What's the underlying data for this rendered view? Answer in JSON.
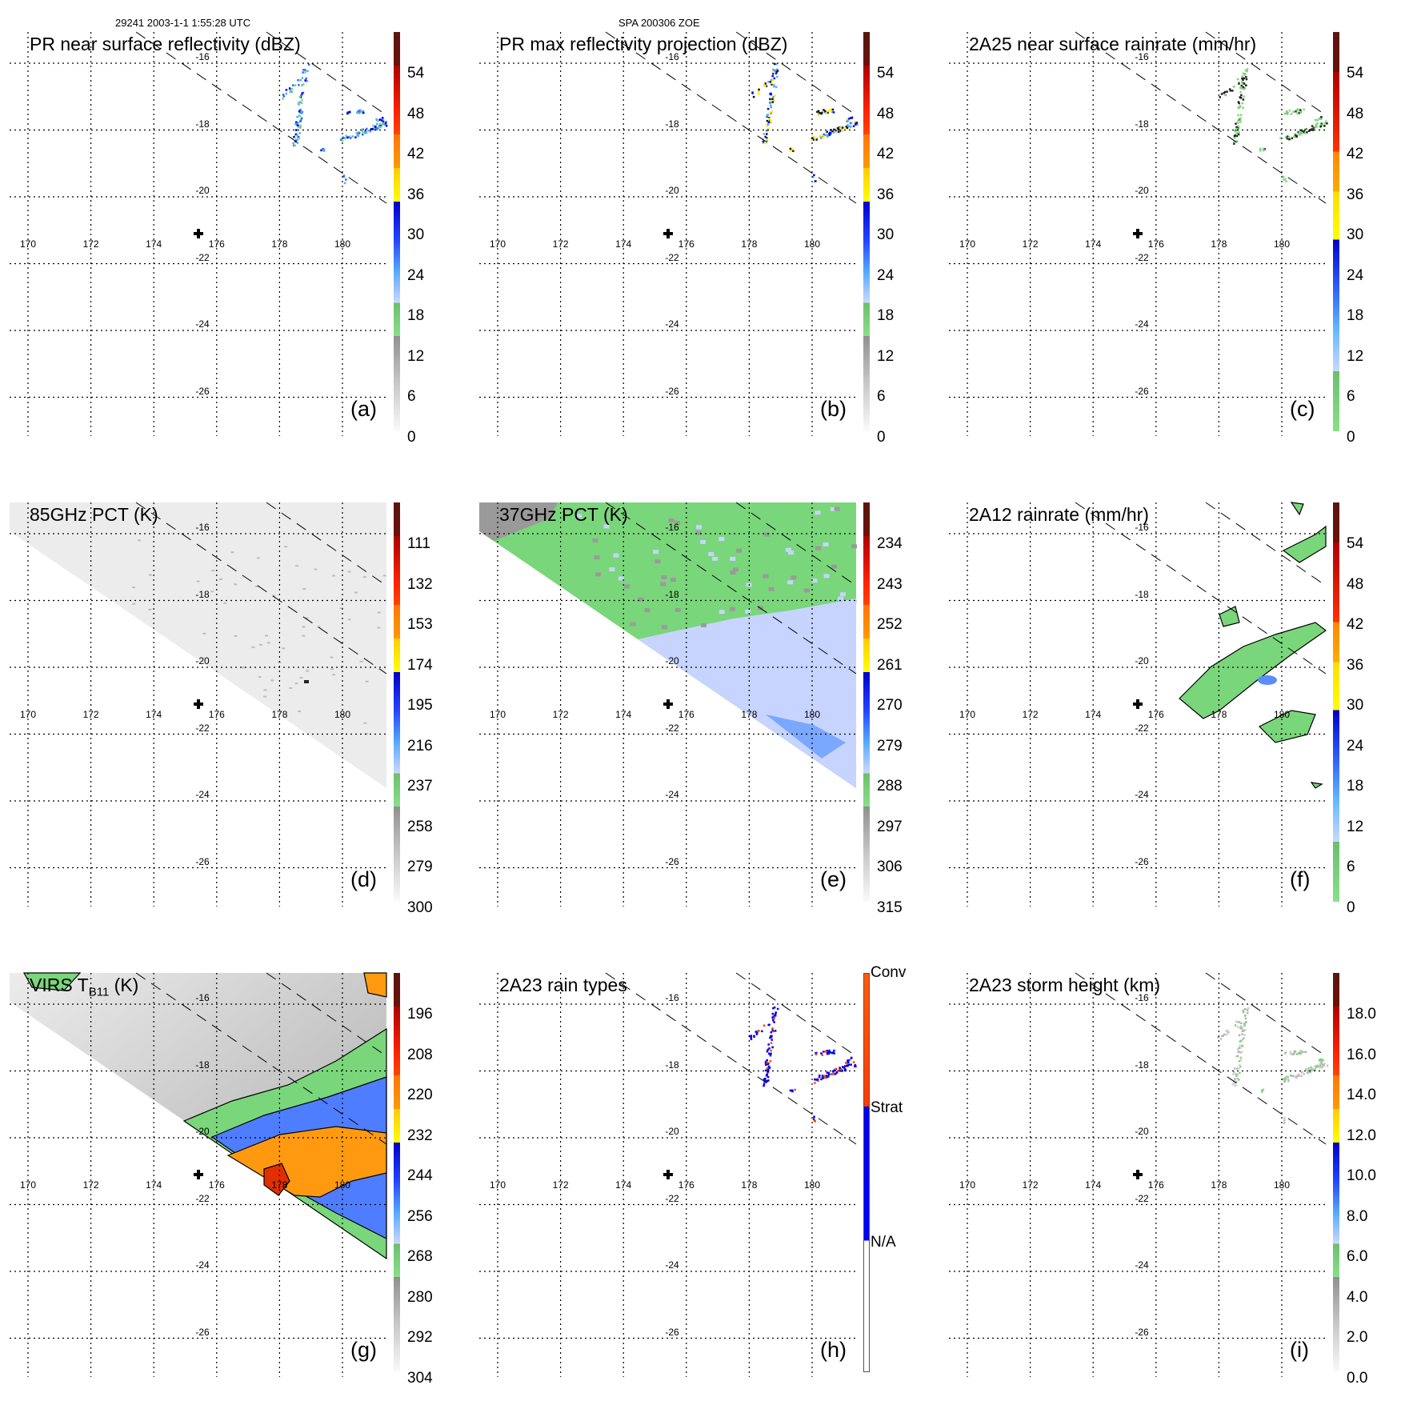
{
  "header": {
    "timestamp": "29241 2003-1-1 1:55:28 UTC",
    "site": "SPA 200306 ZOE"
  },
  "axes": {
    "lon_labels": [
      "170",
      "172",
      "174",
      "176",
      "178",
      "180"
    ],
    "lat_labels": [
      "-16",
      "-18",
      "-20",
      "-22",
      "-24",
      "-26"
    ]
  },
  "colors": {
    "grid": "#000000",
    "swath": "#000000",
    "green": "#7fd67f",
    "blue": "#0000ee",
    "orange": "#ff8800",
    "red": "#cc0000"
  },
  "panels": [
    {
      "title": "PR near surface reflectivity (dBZ)",
      "letter": "(a)",
      "scheme": "full",
      "labels": [
        "54",
        "48",
        "42",
        "36",
        "30",
        "24",
        "18",
        "12",
        "6",
        "0"
      ],
      "kind": "dbz"
    },
    {
      "title": "PR max reflectivity projection (dBZ)",
      "letter": "(b)",
      "scheme": "full",
      "labels": [
        "54",
        "48",
        "42",
        "36",
        "30",
        "24",
        "18",
        "12",
        "6",
        "0"
      ],
      "kind": "dbzmax"
    },
    {
      "title": "2A25 near surface rainrate (mm/hr)",
      "letter": "(c)",
      "scheme": "rain",
      "labels": [
        "54",
        "48",
        "42",
        "36",
        "30",
        "24",
        "18",
        "12",
        "6",
        "0"
      ],
      "kind": "rain"
    },
    {
      "title": "85GHz PCT (K)",
      "letter": "(d)",
      "scheme": "full",
      "labels": [
        "111",
        "132",
        "153",
        "174",
        "195",
        "216",
        "237",
        "258",
        "279",
        "300"
      ],
      "kind": "pct85"
    },
    {
      "title": "37GHz PCT (K)",
      "letter": "(e)",
      "scheme": "full",
      "labels": [
        "234",
        "243",
        "252",
        "261",
        "270",
        "279",
        "288",
        "297",
        "306",
        "315"
      ],
      "kind": "pct37"
    },
    {
      "title": "2A12 rainrate (mm/hr)",
      "letter": "(f)",
      "scheme": "rain",
      "labels": [
        "54",
        "48",
        "42",
        "36",
        "30",
        "24",
        "18",
        "12",
        "6",
        "0"
      ],
      "kind": "rain12"
    },
    {
      "title": "VIRS T",
      "title_sub": "B11",
      "title_tail": " (K)",
      "letter": "(g)",
      "scheme": "full",
      "labels": [
        "196",
        "208",
        "220",
        "232",
        "244",
        "256",
        "268",
        "280",
        "292",
        "304"
      ],
      "kind": "virs"
    },
    {
      "title": "2A23 rain types",
      "letter": "(h)",
      "scheme": "types",
      "labels": [
        "Conv",
        "Strat",
        "N/A"
      ],
      "kind": "types"
    },
    {
      "title": "2A23 storm height (km)",
      "letter": "(i)",
      "scheme": "full",
      "labels": [
        "18.0",
        "16.0",
        "14.0",
        "12.0",
        "10.0",
        "8.0",
        "6.0",
        "4.0",
        "2.0",
        "0.0"
      ],
      "kind": "height"
    }
  ]
}
